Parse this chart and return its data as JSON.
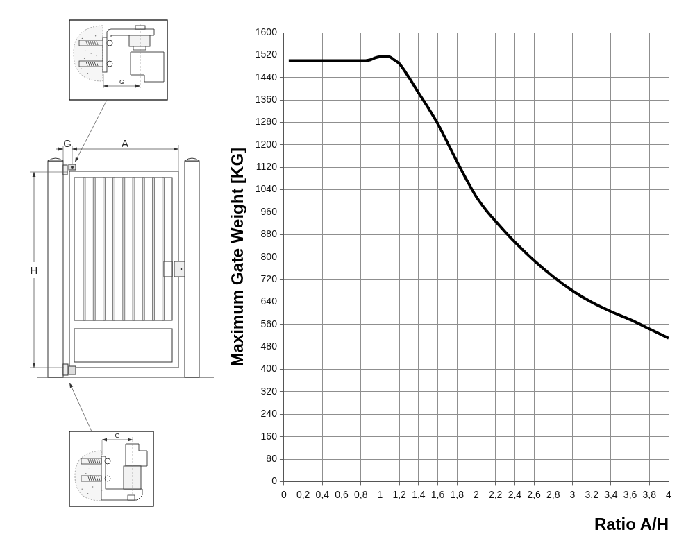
{
  "chart_data": {
    "type": "line",
    "xlabel": "Ratio A/H",
    "ylabel": "Maximum Gate Weight [KG]",
    "x": [
      0.05,
      0.85,
      0.9,
      0.95,
      1.0,
      1.05,
      1.1,
      1.15,
      1.2,
      1.3,
      1.4,
      1.5,
      1.6,
      1.7,
      1.8,
      1.9,
      2.0,
      2.1,
      2.2,
      2.3,
      2.4,
      2.6,
      2.8,
      3.0,
      3.2,
      3.4,
      3.6,
      3.8,
      4.0
    ],
    "series": [
      {
        "color": "#000000",
        "values": [
          1500,
          1500,
          1503,
          1510,
          1514,
          1516,
          1513,
          1502,
          1489,
          1440,
          1385,
          1332,
          1275,
          1208,
          1140,
          1075,
          1015,
          968,
          928,
          890,
          854,
          788,
          730,
          680,
          639,
          606,
          577,
          544,
          511
        ]
      }
    ],
    "xlim": [
      0,
      4
    ],
    "xticks": [
      0,
      {
        "value": 0.2,
        "label": "0,2"
      },
      {
        "value": 0.4,
        "label": "0,4"
      },
      {
        "value": 0.6,
        "label": "0,6"
      },
      {
        "value": 0.8,
        "label": "0,8"
      },
      1,
      {
        "value": 1.2,
        "label": "1,2"
      },
      {
        "value": 1.4,
        "label": "1,4"
      },
      {
        "value": 1.6,
        "label": "1,6"
      },
      {
        "value": 1.8,
        "label": "1,8"
      },
      2,
      {
        "value": 2.2,
        "label": "2,2"
      },
      {
        "value": 2.4,
        "label": "2,4"
      },
      {
        "value": 2.6,
        "label": "2,6"
      },
      {
        "value": 2.8,
        "label": "2,8"
      },
      3,
      {
        "value": 3.2,
        "label": "3,2"
      },
      {
        "value": 3.4,
        "label": "3,4"
      },
      {
        "value": 3.6,
        "label": "3,6"
      },
      {
        "value": 3.8,
        "label": "3,8"
      },
      4
    ],
    "ylim": [
      0,
      1600
    ],
    "yticks": [
      0,
      80,
      160,
      240,
      320,
      400,
      480,
      560,
      640,
      720,
      800,
      880,
      960,
      1040,
      1120,
      1200,
      1280,
      1360,
      1440,
      1520,
      1600
    ],
    "grid": true,
    "marker": "none",
    "line_style": "solid",
    "annotations": [
      "G",
      "G",
      "A",
      "H",
      "G"
    ]
  }
}
